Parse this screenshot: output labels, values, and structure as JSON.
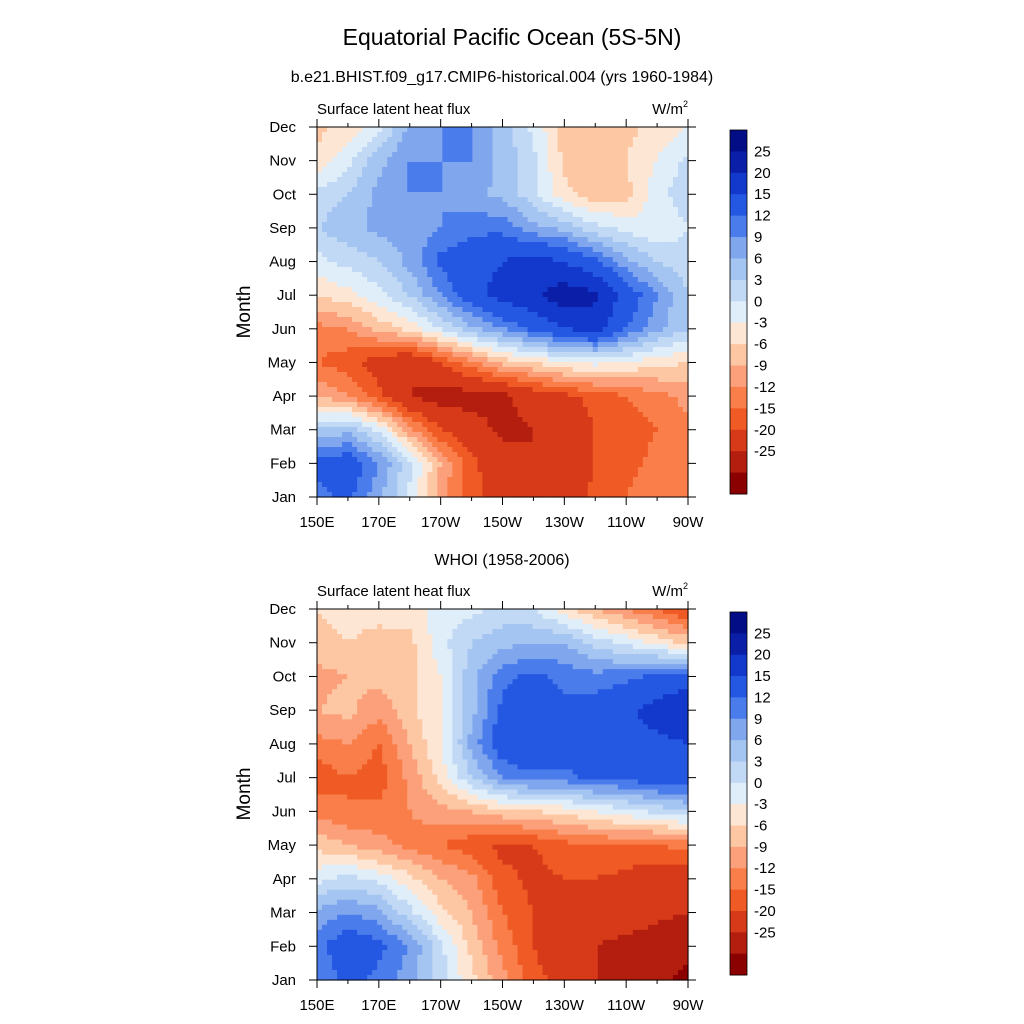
{
  "figure": {
    "title": "Equatorial Pacific Ocean (5S-5N)"
  },
  "colorbar": {
    "levels": [
      "25",
      "20",
      "15",
      "12",
      "9",
      "6",
      "3",
      "0",
      "-3",
      "-6",
      "-9",
      "-12",
      "-15",
      "-20",
      "-25"
    ],
    "colors": [
      "#8b0000",
      "#b31e0f",
      "#d73a18",
      "#f05a24",
      "#f97e4a",
      "#fba07a",
      "#fdc7a3",
      "#fde7d4",
      "#e0eefa",
      "#c1d9f5",
      "#a4c4f1",
      "#80a6ee",
      "#4a7ceb",
      "#2558e2",
      "#1238cc",
      "#0a1ea8",
      "#030d85"
    ]
  },
  "chart_data": [
    {
      "type": "heatmap",
      "title": "b.e21.BHIST.f09_g17.CMIP6-historical.004 (yrs 1960-1984)",
      "left_label": "Surface latent heat flux",
      "units": "W/m",
      "units_sup": "2",
      "ylabel": "Month",
      "x_ticks": [
        "150E",
        "170E",
        "170W",
        "150W",
        "130W",
        "110W",
        "90W"
      ],
      "x_ticks_lon": [
        150,
        170,
        190,
        210,
        230,
        250,
        270
      ],
      "y_ticks": [
        "Jan",
        "Feb",
        "Mar",
        "Apr",
        "May",
        "Jun",
        "Jul",
        "Aug",
        "Sep",
        "Oct",
        "Nov",
        "Dec"
      ],
      "xlim": [
        150,
        270
      ],
      "ylim": [
        1,
        12
      ],
      "levels": [
        -25,
        -20,
        -15,
        -12,
        -9,
        -6,
        -3,
        0,
        3,
        6,
        9,
        12,
        15,
        20,
        25
      ],
      "lon": [
        150,
        160,
        170,
        180,
        190,
        200,
        210,
        220,
        230,
        240,
        250,
        260,
        270
      ],
      "month": [
        1,
        2,
        3,
        4,
        5,
        6,
        7,
        8,
        9,
        10,
        11,
        12
      ],
      "z": [
        [
          14,
          16,
          10,
          2,
          -8,
          -14,
          -17,
          -20,
          -18,
          -14,
          -12,
          -10,
          -9
        ],
        [
          16,
          18,
          12,
          4,
          -6,
          -14,
          -18,
          -20,
          -18,
          -15,
          -13,
          -11,
          -10
        ],
        [
          6,
          8,
          2,
          -8,
          -15,
          -18,
          -21,
          -20,
          -17,
          -15,
          -14,
          -12,
          -10
        ],
        [
          -6,
          -9,
          -14,
          -20,
          -22,
          -22,
          -21,
          -18,
          -16,
          -14,
          -12,
          -10,
          -8
        ],
        [
          -12,
          -14,
          -17,
          -20,
          -15,
          -10,
          -5,
          -3,
          0,
          1,
          0,
          -2,
          -3
        ],
        [
          -10,
          -9,
          -5,
          -2,
          3,
          8,
          12,
          16,
          20,
          22,
          15,
          10,
          6
        ],
        [
          -3,
          -1,
          2,
          6,
          12,
          18,
          22,
          24,
          28,
          26,
          18,
          12,
          6
        ],
        [
          2,
          4,
          6,
          10,
          16,
          18,
          20,
          22,
          20,
          16,
          10,
          6,
          4
        ],
        [
          6,
          8,
          10,
          10,
          12,
          14,
          14,
          10,
          8,
          4,
          2,
          0,
          3
        ],
        [
          4,
          6,
          10,
          12,
          12,
          10,
          8,
          4,
          -2,
          -5,
          -4,
          2,
          5
        ],
        [
          -2,
          2,
          8,
          12,
          12,
          12,
          8,
          4,
          -4,
          -6,
          -3,
          0,
          4
        ],
        [
          -4,
          -2,
          2,
          10,
          12,
          12,
          8,
          2,
          -4,
          -6,
          -4,
          -2,
          0
        ]
      ]
    },
    {
      "type": "heatmap",
      "title": "WHOI (1958-2006)",
      "left_label": "Surface latent heat flux",
      "units": "W/m",
      "units_sup": "2",
      "ylabel": "Month",
      "x_ticks": [
        "150E",
        "170E",
        "170W",
        "150W",
        "130W",
        "110W",
        "90W"
      ],
      "x_ticks_lon": [
        150,
        170,
        190,
        210,
        230,
        250,
        270
      ],
      "y_ticks": [
        "Jan",
        "Feb",
        "Mar",
        "Apr",
        "May",
        "Jun",
        "Jul",
        "Aug",
        "Sep",
        "Oct",
        "Nov",
        "Dec"
      ],
      "xlim": [
        150,
        270
      ],
      "ylim": [
        1,
        12
      ],
      "levels": [
        -25,
        -20,
        -15,
        -12,
        -9,
        -6,
        -3,
        0,
        3,
        6,
        9,
        12,
        15,
        20,
        25
      ],
      "lon": [
        150,
        160,
        170,
        180,
        190,
        200,
        210,
        220,
        230,
        240,
        250,
        260,
        270
      ],
      "month": [
        1,
        2,
        3,
        4,
        5,
        6,
        7,
        8,
        9,
        10,
        11,
        12
      ],
      "z": [
        [
          12,
          16,
          14,
          10,
          4,
          -2,
          -8,
          -14,
          -16,
          -20,
          -22,
          -24,
          -26
        ],
        [
          14,
          18,
          16,
          12,
          4,
          -4,
          -10,
          -15,
          -18,
          -20,
          -21,
          -22,
          -24
        ],
        [
          10,
          12,
          10,
          4,
          -2,
          -6,
          -12,
          -15,
          -17,
          -18,
          -18,
          -19,
          -20
        ],
        [
          2,
          4,
          2,
          -2,
          -6,
          -8,
          -14,
          -16,
          -15,
          -15,
          -16,
          -18,
          -18
        ],
        [
          -4,
          -6,
          -8,
          -10,
          -12,
          -14,
          -16,
          -15,
          -13,
          -12,
          -12,
          -12,
          -11
        ],
        [
          -10,
          -12,
          -11,
          -9,
          -7,
          -6,
          -4,
          -3,
          -2,
          0,
          2,
          4,
          6
        ],
        [
          -14,
          -12,
          -14,
          -8,
          -2,
          6,
          12,
          14,
          14,
          16,
          16,
          18,
          18
        ],
        [
          -10,
          -9,
          -12,
          -6,
          0,
          10,
          18,
          20,
          18,
          18,
          18,
          19,
          20
        ],
        [
          -6,
          -5,
          -8,
          -4,
          0,
          8,
          16,
          18,
          16,
          17,
          19,
          22,
          24
        ],
        [
          -7,
          -6,
          -5,
          -4,
          0,
          8,
          14,
          16,
          14,
          13,
          14,
          16,
          18
        ],
        [
          -4,
          -3,
          -4,
          -4,
          2,
          6,
          8,
          9,
          9,
          5,
          2,
          -1,
          -4
        ],
        [
          -3,
          -2,
          -2,
          -1,
          1,
          2,
          4,
          3,
          -2,
          -6,
          -9,
          -12,
          -16
        ]
      ]
    }
  ]
}
